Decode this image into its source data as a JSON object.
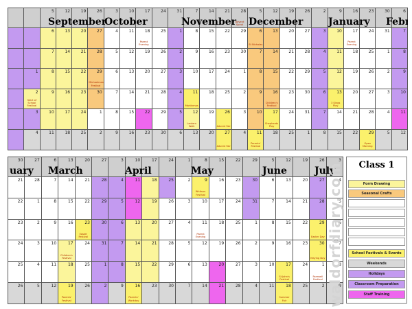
{
  "title": "Class 1",
  "watermark": "waldorfdiary.com",
  "colors": {
    "W": "#d8d8d8",
    "P": "#c39af0",
    "M": "#ee66ee",
    "Y": "#fbf59b",
    "O": "#f9c97d",
    "F": "#fbf16c",
    "X": "#ffffff",
    "H": "#cfcfcf"
  },
  "legend": [
    {
      "label": "Form Drawing",
      "color": "#fbf59b"
    },
    {
      "label": "Seasonal Crafts",
      "color": "#f9c97d"
    },
    {
      "label": "",
      "color": "#ffffff"
    },
    {
      "label": "",
      "color": "#ffffff"
    },
    {
      "label": "",
      "color": "#ffffff"
    },
    {
      "label": "",
      "color": "#ffffff"
    },
    {
      "label": "",
      "color": "#ffffff"
    },
    {
      "label": "School Festivals & Events",
      "color": "#fbf16c"
    },
    {
      "label": "Weekends",
      "color": "#d8d8d8"
    },
    {
      "label": "Holidays",
      "color": "#c39af0"
    },
    {
      "label": "Classroom Preparation",
      "color": "#c39af0"
    },
    {
      "label": "Staff Training",
      "color": "#ee66ee"
    }
  ],
  "top": {
    "months": [
      "September",
      "October",
      "November",
      "December",
      "January",
      "Febr"
    ],
    "header": [
      "",
      "",
      "5",
      "12",
      "19",
      "26",
      "3",
      "10",
      "17",
      "24",
      "31",
      "7",
      "14",
      "21",
      "28",
      "5",
      "12",
      "19",
      "26",
      "2",
      "9",
      "16",
      "23",
      "30",
      "6"
    ],
    "rows": [
      {
        "nums": [
          "",
          "",
          "6",
          "13",
          "20",
          "27",
          "4",
          "11",
          "18",
          "25",
          "1",
          "8",
          "15",
          "22",
          "29",
          "6",
          "13",
          "20",
          "27",
          "3",
          "10",
          "17",
          "24",
          "31",
          "7"
        ],
        "colors": "PPYYYOXXXXPXXXXOOXXPYXXXP"
      },
      {
        "nums": [
          "",
          "",
          "7",
          "14",
          "21",
          "28",
          "5",
          "12",
          "19",
          "26",
          "2",
          "9",
          "16",
          "23",
          "30",
          "7",
          "14",
          "21",
          "28",
          "4",
          "11",
          "18",
          "25",
          "1",
          "8"
        ],
        "colors": "PPYYYOXXXXPXXXXOOXXPYXXXP"
      },
      {
        "nums": [
          "",
          "1",
          "8",
          "15",
          "22",
          "29",
          "6",
          "13",
          "20",
          "27",
          "3",
          "10",
          "17",
          "24",
          "1",
          "8",
          "15",
          "22",
          "29",
          "5",
          "12",
          "19",
          "26",
          "2",
          "9"
        ],
        "colors": "PPYYYOXXXXPXXXXOOXXPYXXXP"
      },
      {
        "nums": [
          "",
          "2",
          "9",
          "16",
          "23",
          "30",
          "7",
          "14",
          "21",
          "28",
          "4",
          "11",
          "18",
          "25",
          "2",
          "9",
          "16",
          "23",
          "30",
          "6",
          "13",
          "20",
          "27",
          "3",
          "10"
        ],
        "colors": "PYYYYOXXXXPFXXXOOXXPFXXXP"
      },
      {
        "nums": [
          "",
          "3",
          "10",
          "17",
          "24",
          "1",
          "8",
          "15",
          "22",
          "29",
          "5",
          "12",
          "19",
          "26",
          "3",
          "10",
          "17",
          "24",
          "31",
          "7",
          "14",
          "21",
          "28",
          "4",
          "11"
        ],
        "colors": "PPYYYXXXMXPYXFXOFXXPXXXXM"
      },
      {
        "nums": [
          "",
          "4",
          "11",
          "18",
          "25",
          "2",
          "9",
          "16",
          "23",
          "30",
          "6",
          "13",
          "20",
          "27",
          "4",
          "11",
          "18",
          "25",
          "1",
          "8",
          "15",
          "22",
          "29",
          "5",
          "12"
        ],
        "colors": "PWWWWWWWWWWWWFWFWWWWWWFWW"
      }
    ],
    "events": [
      {
        "r": 0,
        "c": 14,
        "text": "Advent Spiral",
        "pos": "header"
      },
      {
        "r": 0,
        "c": 8,
        "text": "Parent Evening"
      },
      {
        "r": 0,
        "c": 15,
        "text": "St Nicholas"
      },
      {
        "r": 0,
        "c": 21,
        "text": "Parent Evening"
      },
      {
        "r": 2,
        "c": 5,
        "text": "Michaelmas Festival"
      },
      {
        "r": 3,
        "c": 1,
        "text": "Start of School Festival"
      },
      {
        "r": 3,
        "c": 11,
        "text": "Martinmas"
      },
      {
        "r": 3,
        "c": 16,
        "text": "Children's Festival"
      },
      {
        "r": 3,
        "c": 20,
        "text": "3 Kings Play"
      },
      {
        "r": 4,
        "c": 11,
        "text": "Lantern Walk"
      },
      {
        "r": 4,
        "c": 13,
        "text": "Advent Fair"
      },
      {
        "r": 4,
        "c": 16,
        "text": "Shepherds Play"
      },
      {
        "r": 5,
        "c": 13,
        "text": "Advent Fair"
      },
      {
        "r": 5,
        "c": 15,
        "text": "Parents' Festival"
      },
      {
        "r": 5,
        "c": 22,
        "text": "Open Morning"
      }
    ]
  },
  "bottom": {
    "months": [
      "uary",
      "March",
      "April",
      "May",
      "June",
      "July"
    ],
    "header": [
      "30",
      "27",
      "6",
      "13",
      "20",
      "27",
      "3",
      "10",
      "17",
      "24",
      "1",
      "8",
      "15",
      "22",
      "29",
      "5",
      "12",
      "19",
      "26",
      "3"
    ],
    "rows": [
      {
        "nums": [
          "21",
          "28",
          "7",
          "14",
          "21",
          "28",
          "4",
          "11",
          "18",
          "25",
          "2",
          "9",
          "16",
          "23",
          "30",
          "6",
          "13",
          "20",
          "27",
          "4"
        ],
        "colors": "XXXXXPPMYPXFXXPXXXPX"
      },
      {
        "nums": [
          "22",
          "1",
          "8",
          "15",
          "22",
          "29",
          "5",
          "12",
          "19",
          "26",
          "3",
          "10",
          "17",
          "24",
          "31",
          "7",
          "14",
          "21",
          "28",
          "5"
        ],
        "colors": "XXXXXPPMYXXXXXPXXXPX"
      },
      {
        "nums": [
          "23",
          "2",
          "9",
          "16",
          "23",
          "30",
          "6",
          "13",
          "20",
          "27",
          "4",
          "11",
          "18",
          "25",
          "1",
          "8",
          "15",
          "22",
          "29",
          "6"
        ],
        "colors": "XXXXFPPYYXXXXXXXXXFX"
      },
      {
        "nums": [
          "24",
          "3",
          "10",
          "17",
          "24",
          "31",
          "7",
          "14",
          "21",
          "28",
          "5",
          "12",
          "19",
          "26",
          "2",
          "9",
          "16",
          "23",
          "30",
          "7"
        ],
        "colors": "XXXYXPPYYXXXXXXXXXFX"
      },
      {
        "nums": [
          "25",
          "4",
          "11",
          "18",
          "25",
          "1",
          "8",
          "15",
          "22",
          "29",
          "6",
          "13",
          "20",
          "27",
          "3",
          "10",
          "17",
          "24",
          "1",
          "8"
        ],
        "colors": "XXXYXPPYYXXXMXXXFXXX"
      },
      {
        "nums": [
          "26",
          "5",
          "12",
          "19",
          "26",
          "2",
          "9",
          "16",
          "23",
          "30",
          "7",
          "14",
          "21",
          "28",
          "4",
          "11",
          "18",
          "25",
          "2",
          "9"
        ],
        "colors": "WWWFWPWFWWWWMWWWFWWW"
      }
    ],
    "events": [
      {
        "r": 0,
        "c": 11,
        "text": "Whitsun Festival"
      },
      {
        "r": 2,
        "c": 11,
        "text": "Parent Evening"
      },
      {
        "r": 2,
        "c": 4,
        "text": "Easter Festival"
      },
      {
        "r": 2,
        "c": 18,
        "text": "Easter Day"
      },
      {
        "r": 3,
        "c": 3,
        "text": "Children's Festival"
      },
      {
        "r": 3,
        "c": 18,
        "text": "Maying Day"
      },
      {
        "r": 4,
        "c": 16,
        "text": "St John's Festival"
      },
      {
        "r": 4,
        "c": 18,
        "text": "Farewell Festival"
      },
      {
        "r": 5,
        "c": 3,
        "text": "Parents' Festival"
      },
      {
        "r": 5,
        "c": 7,
        "text": "Parents' Workday"
      },
      {
        "r": 5,
        "c": 16,
        "text": "Summer Fair"
      }
    ]
  }
}
